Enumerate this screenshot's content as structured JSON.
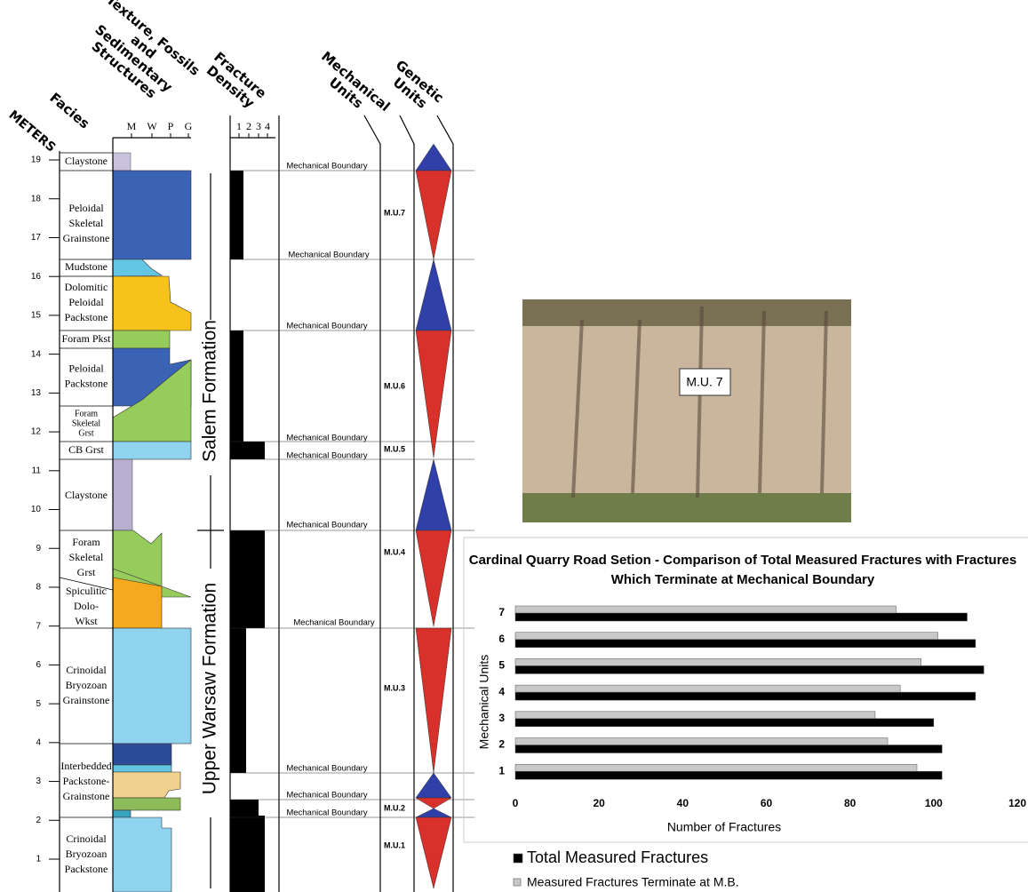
{
  "headers": {
    "meters": "METERS",
    "facies": "Facies",
    "texture": [
      "Texture, Fossils",
      "and",
      "Sedimentary",
      "Structures"
    ],
    "fracture_density": [
      "Fracture",
      "Density"
    ],
    "mechanical_units": [
      "Mechanical",
      "Units"
    ],
    "genetic_units": [
      "Genetic",
      "Units"
    ]
  },
  "texture_scale": [
    "M",
    "W",
    "P",
    "G"
  ],
  "density_scale": [
    1,
    2,
    3,
    4
  ],
  "meter_ticks": [
    1,
    2,
    3,
    4,
    5,
    6,
    7,
    8,
    9,
    10,
    11,
    12,
    13,
    14,
    15,
    16,
    17,
    18,
    19
  ],
  "facies": [
    [
      "Claystone"
    ],
    [
      "Peloidal",
      "Skeletal",
      "Grainstone"
    ],
    [
      "Mudstone"
    ],
    [
      "Dolomitic",
      "Peloidal",
      "Packstone"
    ],
    [
      "Foram Pkst"
    ],
    [
      "Peloidal",
      "Packstone"
    ],
    [
      "Foram",
      "Skeletal",
      "Grst"
    ],
    [
      "CB Grst"
    ],
    [
      "Claystone"
    ],
    [
      "Foram",
      "Skeletal",
      "Grst"
    ],
    [
      "Spiculitic",
      "Dolo-",
      "Wkst"
    ],
    [
      "Crinoidal",
      "Bryozoan",
      "Grainstone"
    ],
    [
      "Interbedded",
      "Packstone-",
      "Grainstone"
    ],
    [
      "Crinoidal",
      "Bryozoan",
      "Packstone"
    ]
  ],
  "formations": [
    "Salem Formation",
    "Upper Warsaw Formation"
  ],
  "mechanical_boundaries": [
    "Mechanical Boundary",
    "Mechanical Boundary",
    "Mechanical Boundary",
    "Mechanical Boundary",
    "Mechanical Boundary",
    "Mechanical Boundary",
    "Mechanical Boundary",
    "Mechanical Boundary",
    "Mechanical Boundary",
    "Mechanical Boundary"
  ],
  "mechanical_units": [
    "M.U.7",
    "M.U.6",
    "M.U.5",
    "M.U.4",
    "M.U.3",
    "M.U.2",
    "M.U.1"
  ],
  "photo_label": "M.U. 7",
  "chart_data": {
    "type": "bar",
    "orientation": "horizontal",
    "title": "Cardinal Quarry Road Setion - Comparison of Total Measured Fractures with Fractures Which Terminate at Mechanical Boundary",
    "xlabel": "Number of Fractures",
    "ylabel": "Mechanical Units",
    "categories": [
      "1",
      "2",
      "3",
      "4",
      "5",
      "6",
      "7"
    ],
    "series": [
      {
        "name": "Total Measured Fractures",
        "color": "#000000",
        "values": [
          102,
          102,
          100,
          110,
          112,
          110,
          108
        ]
      },
      {
        "name": "Measured Fractures Terminate at M.B.",
        "color": "#c8c8c8",
        "values": [
          96,
          89,
          86,
          92,
          97,
          101,
          91
        ]
      }
    ],
    "xlim": [
      0,
      120
    ],
    "xticks": [
      0,
      20,
      40,
      60,
      80,
      100,
      120
    ],
    "legend": "bottom"
  }
}
